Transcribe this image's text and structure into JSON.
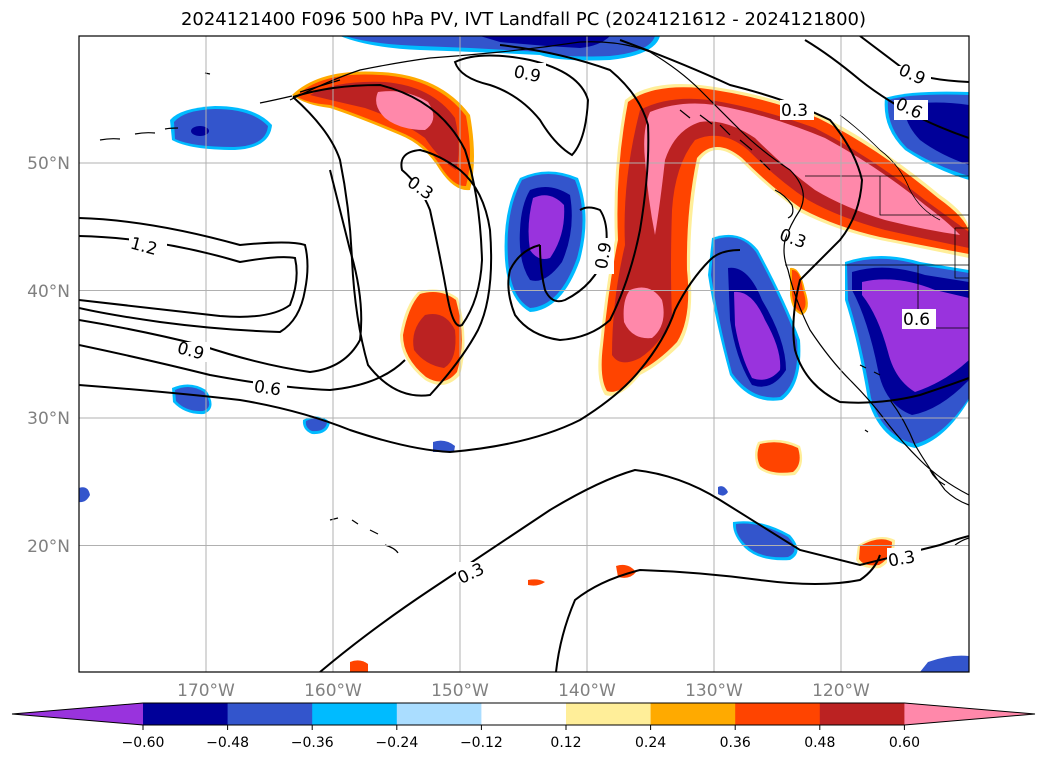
{
  "title": "2024121400 F096 500 hPa PV, IVT Landfall PC (2024121612 - 2024121800)",
  "lat_labels": [
    "50°N",
    "40°N",
    "30°N",
    "20°N"
  ],
  "lon_labels": [
    "170°W",
    "160°W",
    "150°W",
    "140°W",
    "130°W",
    "120°W"
  ],
  "colorbar": {
    "ticks": [
      "−0.60",
      "−0.48",
      "−0.36",
      "−0.24",
      "−0.12",
      "0.12",
      "0.24",
      "0.36",
      "0.48",
      "0.60"
    ],
    "colors": [
      "#9933dd",
      "#000099",
      "#3355cc",
      "#00bbff",
      "#aaddff",
      "#ffffff",
      "#ffee99",
      "#ffaa00",
      "#ff4400",
      "#bb2222",
      "#ff88aa"
    ]
  },
  "contour_labels": [
    "0.9",
    "0.3",
    "0.3",
    "1.2",
    "0.9",
    "0.6",
    "0.9",
    "0.9",
    "0.6",
    "0.3",
    "0.6",
    "0.3",
    "0.3"
  ],
  "chart_data": {
    "type": "map",
    "title": "2024121400 F096 500 hPa PV, IVT Landfall PC (2024121612 - 2024121800)",
    "lon_range": [
      -180,
      -110
    ],
    "lat_range": [
      10,
      60
    ],
    "lon_ticks": [
      -170,
      -160,
      -150,
      -140,
      -130,
      -120
    ],
    "lat_ticks": [
      20,
      30,
      40,
      50
    ],
    "grid": true,
    "filled_field_levels": [
      -0.6,
      -0.48,
      -0.36,
      -0.24,
      -0.12,
      0.12,
      0.24,
      0.36,
      0.48,
      0.6
    ],
    "colorbar_extend": "both",
    "contour_levels_labeled": [
      0.3,
      0.6,
      0.9,
      1.2
    ]
  }
}
